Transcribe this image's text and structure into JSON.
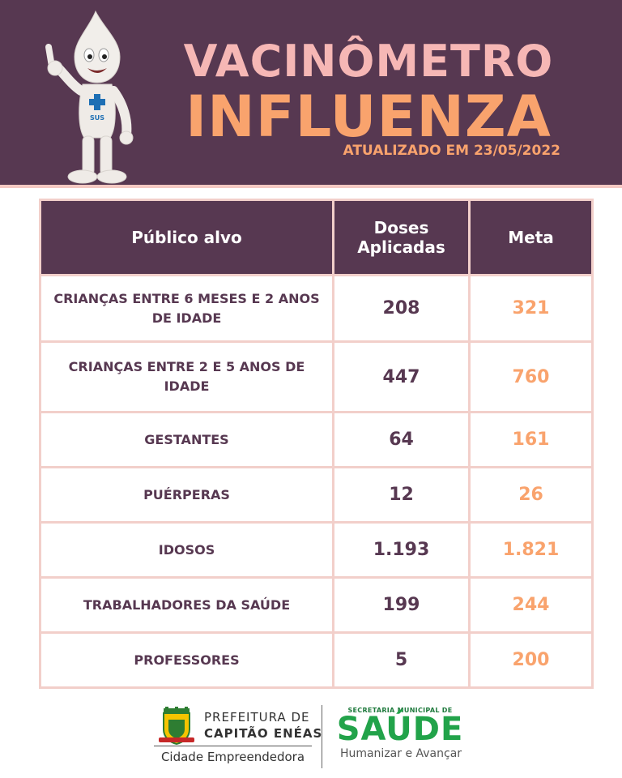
{
  "header": {
    "title_line1": "VACINÔMETRO",
    "title_line2": "INFLUENZA",
    "updated": "ATUALIZADO EM 23/05/2022",
    "mascot_badge": "SUS",
    "colors": {
      "background": "#573851",
      "title1": "#f6b7b5",
      "title2": "#f9a36d"
    }
  },
  "table": {
    "headers": {
      "group": "Público alvo",
      "doses_line1": "Doses",
      "doses_line2": "Aplicadas",
      "meta": "Meta"
    },
    "rows": [
      {
        "group": "CRIANÇAS ENTRE 6 MESES E 2 ANOS DE IDADE",
        "doses": "208",
        "meta": "321"
      },
      {
        "group": "CRIANÇAS ENTRE 2 E 5 ANOS DE IDADE",
        "doses": "447",
        "meta": "760"
      },
      {
        "group": "GESTANTES",
        "doses": "64",
        "meta": "161"
      },
      {
        "group": "PUÉRPERAS",
        "doses": "12",
        "meta": "26"
      },
      {
        "group": "IDOSOS",
        "doses": "1.193",
        "meta": "1.821"
      },
      {
        "group": "TRABALHADORES DA SAÚDE",
        "doses": "199",
        "meta": "244"
      },
      {
        "group": "PROFESSORES",
        "doses": "5",
        "meta": "200"
      }
    ]
  },
  "footer": {
    "prefeitura_line1": "PREFEITURA DE",
    "prefeitura_line2": "CAPITÃO ENÉAS",
    "cidade": "Cidade Empreendedora",
    "secretaria": "SECRETARIA MUNICIPAL DE",
    "saude": "SAÚDE",
    "slogan": "Humanizar e Avançar",
    "crest_icon": "city-crest-icon"
  }
}
